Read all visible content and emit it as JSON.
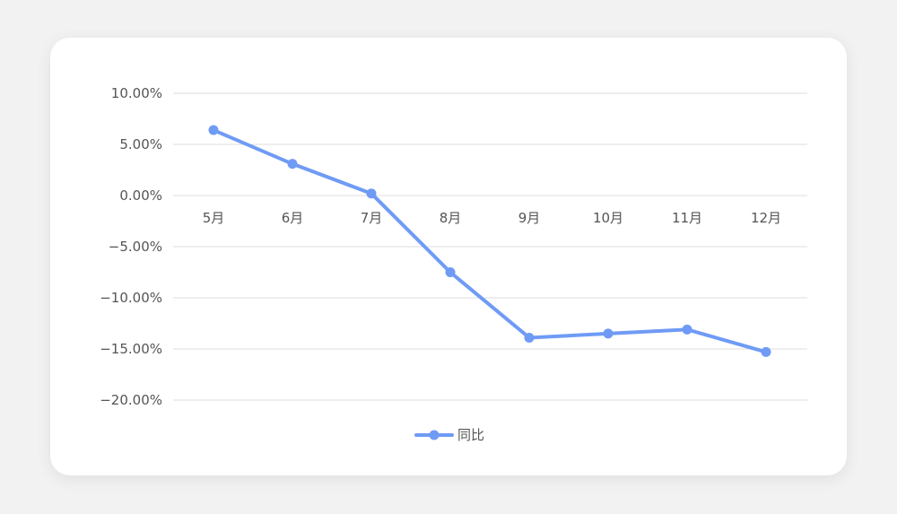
{
  "chart_data": {
    "type": "line",
    "categories": [
      "5月",
      "6月",
      "7月",
      "8月",
      "9月",
      "10月",
      "11月",
      "12月"
    ],
    "series": [
      {
        "name": "同比",
        "values": [
          6.4,
          3.1,
          0.2,
          -7.5,
          -13.9,
          -13.5,
          -13.1,
          -15.3
        ],
        "color": "#6f9bf5"
      }
    ],
    "y_tick_labels": [
      "10.00%",
      "5.00%",
      "0.00%",
      "−5.00%",
      "−10.00%",
      "−15.00%",
      "−20.00%"
    ],
    "y_tick_values": [
      10,
      5,
      0,
      -5,
      -10,
      -15,
      -20
    ],
    "ylim": [
      -20,
      10
    ],
    "grid": true,
    "gridline_color": "#dcdcdc",
    "legend_position": "bottom-center"
  }
}
